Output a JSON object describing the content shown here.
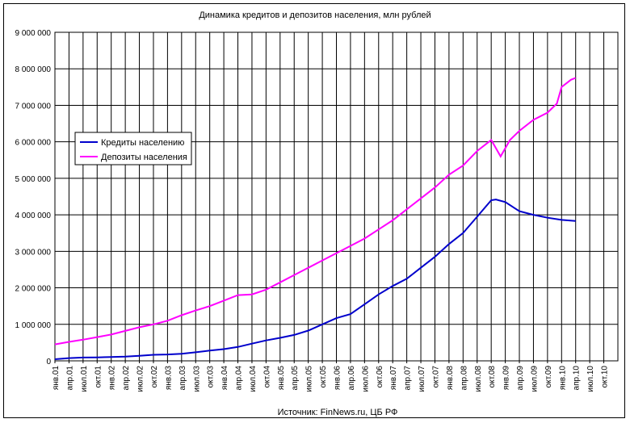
{
  "chart_data": {
    "type": "line",
    "title": "Динамика кредитов и депозитов населения, млн рублей",
    "source": "Источник: FinNews.ru, ЦБ РФ",
    "xlabel": "",
    "ylabel": "",
    "ylim": [
      0,
      9000000
    ],
    "y_ticks": [
      "0",
      "1 000 000",
      "2 000 000",
      "3 000 000",
      "4 000 000",
      "5 000 000",
      "6 000 000",
      "7 000 000",
      "8 000 000",
      "9 000 000"
    ],
    "x_ticks": [
      "янв.01",
      "апр.01",
      "июл.01",
      "окт.01",
      "янв.02",
      "апр.02",
      "июл.02",
      "окт.02",
      "янв.03",
      "апр.03",
      "июл.03",
      "окт.03",
      "янв.04",
      "апр.04",
      "июл.04",
      "окт.04",
      "янв.05",
      "апр.05",
      "июл.05",
      "окт.05",
      "янв.06",
      "апр.06",
      "июл.06",
      "окт.06",
      "янв.07",
      "апр.07",
      "июл.07",
      "окт.07",
      "янв.08",
      "апр.08",
      "июл.08",
      "окт.08",
      "янв.09",
      "апр.09",
      "июл.09",
      "окт.09",
      "янв.10",
      "апр.10",
      "июл.10",
      "окт.10"
    ],
    "grid": true,
    "legend_position": "left",
    "series": [
      {
        "name": "Кредиты населению",
        "color": "#0000cc",
        "points": [
          [
            0,
            45000
          ],
          [
            3,
            75000
          ],
          [
            6,
            90000
          ],
          [
            9,
            95000
          ],
          [
            12,
            105000
          ],
          [
            15,
            115000
          ],
          [
            18,
            140000
          ],
          [
            21,
            165000
          ],
          [
            24,
            175000
          ],
          [
            27,
            195000
          ],
          [
            30,
            235000
          ],
          [
            33,
            280000
          ],
          [
            36,
            320000
          ],
          [
            39,
            380000
          ],
          [
            42,
            470000
          ],
          [
            45,
            560000
          ],
          [
            48,
            630000
          ],
          [
            51,
            710000
          ],
          [
            54,
            830000
          ],
          [
            57,
            1000000
          ],
          [
            60,
            1170000
          ],
          [
            63,
            1280000
          ],
          [
            66,
            1550000
          ],
          [
            69,
            1820000
          ],
          [
            72,
            2050000
          ],
          [
            75,
            2250000
          ],
          [
            78,
            2550000
          ],
          [
            81,
            2850000
          ],
          [
            84,
            3200000
          ],
          [
            87,
            3500000
          ],
          [
            90,
            3950000
          ],
          [
            93,
            4400000
          ],
          [
            94,
            4420000
          ],
          [
            96,
            4350000
          ],
          [
            99,
            4100000
          ],
          [
            102,
            4000000
          ],
          [
            105,
            3920000
          ],
          [
            108,
            3860000
          ],
          [
            111,
            3830000
          ]
        ]
      },
      {
        "name": "Депозиты населения",
        "color": "#ff00ff",
        "points": [
          [
            0,
            450000
          ],
          [
            3,
            520000
          ],
          [
            6,
            580000
          ],
          [
            9,
            650000
          ],
          [
            12,
            720000
          ],
          [
            15,
            820000
          ],
          [
            18,
            920000
          ],
          [
            21,
            1000000
          ],
          [
            24,
            1100000
          ],
          [
            27,
            1250000
          ],
          [
            30,
            1380000
          ],
          [
            33,
            1500000
          ],
          [
            36,
            1650000
          ],
          [
            39,
            1800000
          ],
          [
            42,
            1820000
          ],
          [
            45,
            1950000
          ],
          [
            48,
            2150000
          ],
          [
            51,
            2350000
          ],
          [
            54,
            2550000
          ],
          [
            57,
            2750000
          ],
          [
            60,
            2950000
          ],
          [
            63,
            3150000
          ],
          [
            66,
            3350000
          ],
          [
            69,
            3600000
          ],
          [
            72,
            3850000
          ],
          [
            75,
            4150000
          ],
          [
            78,
            4450000
          ],
          [
            81,
            4750000
          ],
          [
            84,
            5100000
          ],
          [
            87,
            5350000
          ],
          [
            90,
            5750000
          ],
          [
            93,
            6050000
          ],
          [
            95,
            5600000
          ],
          [
            97,
            6050000
          ],
          [
            99,
            6300000
          ],
          [
            102,
            6600000
          ],
          [
            105,
            6800000
          ],
          [
            107,
            7050000
          ],
          [
            108,
            7500000
          ],
          [
            110,
            7700000
          ],
          [
            111,
            7750000
          ]
        ]
      }
    ]
  }
}
